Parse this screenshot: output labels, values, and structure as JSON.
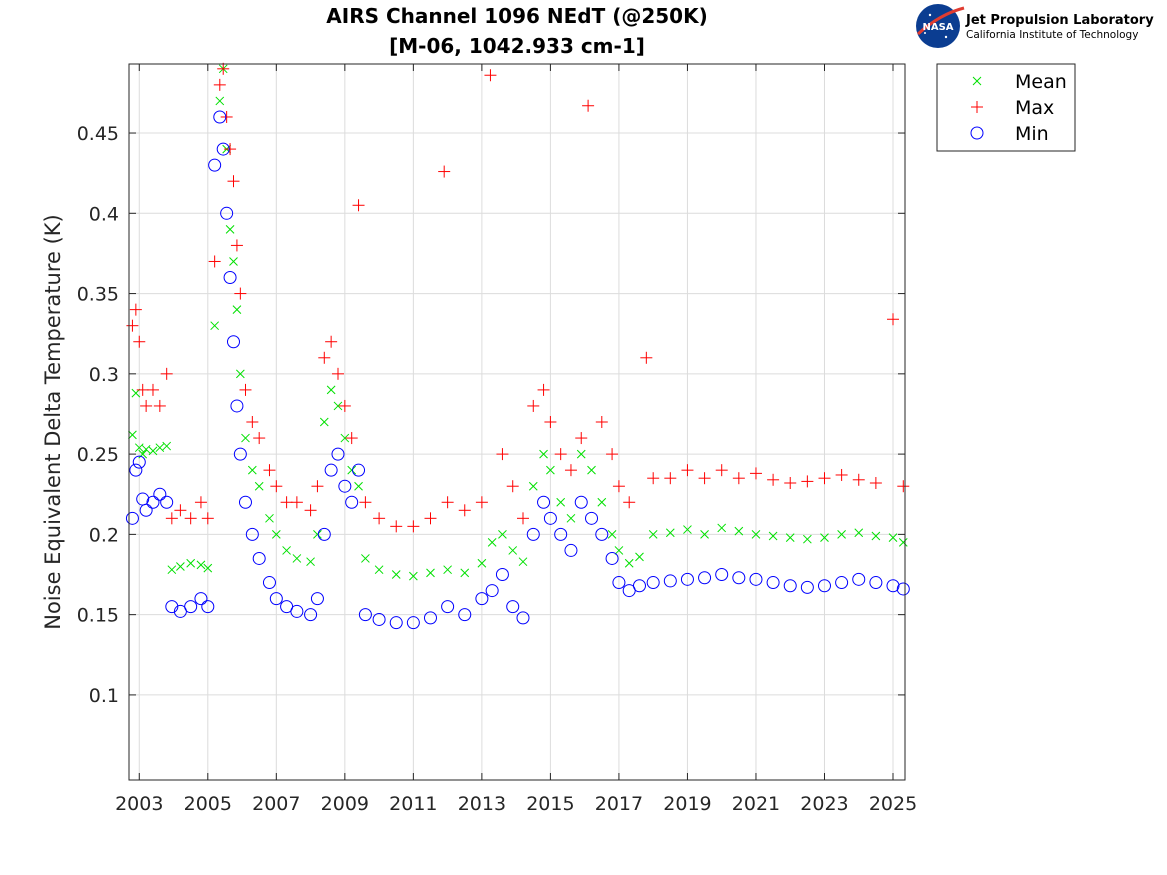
{
  "logo": {
    "nasa_label": "NASA",
    "lab_name": "Jet Propulsion Laboratory",
    "institute": "California Institute of Technology"
  },
  "colors": {
    "mean": "#00e000",
    "max": "#ff0000",
    "min": "#0000ff"
  },
  "chart_data": {
    "type": "scatter",
    "title": "AIRS Channel 1096 NEdT (@250K)",
    "subtitle": "[M-06, 1042.933 cm-1]",
    "xlabel": "",
    "ylabel": "Noise Equivalent Delta Temperature (K)",
    "xlim": [
      2002.7,
      2025.35
    ],
    "ylim": [
      0.047,
      0.493
    ],
    "xticks": [
      2003,
      2005,
      2007,
      2009,
      2011,
      2013,
      2015,
      2017,
      2019,
      2021,
      2023,
      2025
    ],
    "xtick_labels": [
      "2003",
      "2005",
      "2007",
      "2009",
      "2011",
      "2013",
      "2015",
      "2017",
      "2019",
      "2021",
      "2023",
      "2025"
    ],
    "yticks": [
      0.1,
      0.15,
      0.2,
      0.25,
      0.3,
      0.35,
      0.4,
      0.45
    ],
    "ytick_labels": [
      "0.1",
      "0.15",
      "0.2",
      "0.25",
      "0.3",
      "0.35",
      "0.4",
      "0.45"
    ],
    "grid": true,
    "legend_position": "outside-top-right",
    "series": [
      {
        "name": "Mean",
        "marker": "x",
        "color": "#00e000",
        "x": [
          2002.8,
          2002.9,
          2003.0,
          2003.1,
          2003.2,
          2003.4,
          2003.6,
          2003.8,
          2003.95,
          2004.2,
          2004.5,
          2004.8,
          2005.0,
          2005.2,
          2005.35,
          2005.45,
          2005.55,
          2005.65,
          2005.75,
          2005.85,
          2005.95,
          2006.1,
          2006.3,
          2006.5,
          2006.8,
          2007.0,
          2007.3,
          2007.6,
          2008.0,
          2008.2,
          2008.4,
          2008.6,
          2008.8,
          2009.0,
          2009.2,
          2009.4,
          2009.6,
          2010.0,
          2010.5,
          2011.0,
          2011.5,
          2012.0,
          2012.5,
          2013.0,
          2013.3,
          2013.6,
          2013.9,
          2014.2,
          2014.5,
          2014.8,
          2015.0,
          2015.3,
          2015.6,
          2015.9,
          2016.2,
          2016.5,
          2016.8,
          2017.0,
          2017.3,
          2017.6,
          2018.0,
          2018.5,
          2019.0,
          2019.5,
          2020.0,
          2020.5,
          2021.0,
          2021.5,
          2022.0,
          2022.5,
          2023.0,
          2023.5,
          2024.0,
          2024.5,
          2025.0,
          2025.3
        ],
        "y": [
          0.262,
          0.288,
          0.254,
          0.25,
          0.253,
          0.252,
          0.254,
          0.255,
          0.178,
          0.18,
          0.182,
          0.181,
          0.179,
          0.33,
          0.47,
          0.49,
          0.44,
          0.39,
          0.37,
          0.34,
          0.3,
          0.26,
          0.24,
          0.23,
          0.21,
          0.2,
          0.19,
          0.185,
          0.183,
          0.2,
          0.27,
          0.29,
          0.28,
          0.26,
          0.24,
          0.23,
          0.185,
          0.178,
          0.175,
          0.174,
          0.176,
          0.178,
          0.176,
          0.182,
          0.195,
          0.2,
          0.19,
          0.183,
          0.23,
          0.25,
          0.24,
          0.22,
          0.21,
          0.25,
          0.24,
          0.22,
          0.2,
          0.19,
          0.182,
          0.186,
          0.2,
          0.201,
          0.203,
          0.2,
          0.204,
          0.202,
          0.2,
          0.199,
          0.198,
          0.197,
          0.198,
          0.2,
          0.201,
          0.199,
          0.198,
          0.195
        ]
      },
      {
        "name": "Max",
        "marker": "+",
        "color": "#ff0000",
        "x": [
          2002.8,
          2002.9,
          2003.0,
          2003.1,
          2003.2,
          2003.4,
          2003.6,
          2003.8,
          2003.95,
          2004.2,
          2004.5,
          2004.8,
          2005.0,
          2005.2,
          2005.35,
          2005.45,
          2005.55,
          2005.65,
          2005.75,
          2005.85,
          2005.95,
          2006.1,
          2006.3,
          2006.5,
          2006.8,
          2007.0,
          2007.3,
          2007.6,
          2008.0,
          2008.2,
          2008.4,
          2008.6,
          2008.8,
          2009.0,
          2009.2,
          2009.4,
          2009.6,
          2010.0,
          2010.5,
          2011.0,
          2011.5,
          2011.9,
          2012.0,
          2012.5,
          2013.0,
          2013.25,
          2013.6,
          2013.9,
          2014.2,
          2014.5,
          2014.8,
          2015.0,
          2015.3,
          2015.6,
          2015.9,
          2016.1,
          2016.5,
          2016.8,
          2017.0,
          2017.3,
          2017.8,
          2018.0,
          2018.5,
          2019.0,
          2019.5,
          2020.0,
          2020.5,
          2021.0,
          2021.5,
          2022.0,
          2022.5,
          2023.0,
          2023.5,
          2024.0,
          2024.5,
          2025.0,
          2025.3
        ],
        "y": [
          0.33,
          0.34,
          0.32,
          0.29,
          0.28,
          0.29,
          0.28,
          0.3,
          0.21,
          0.215,
          0.21,
          0.22,
          0.21,
          0.37,
          0.48,
          0.49,
          0.46,
          0.44,
          0.42,
          0.38,
          0.35,
          0.29,
          0.27,
          0.26,
          0.24,
          0.23,
          0.22,
          0.22,
          0.215,
          0.23,
          0.31,
          0.32,
          0.3,
          0.28,
          0.26,
          0.405,
          0.22,
          0.21,
          0.205,
          0.205,
          0.21,
          0.426,
          0.22,
          0.215,
          0.22,
          0.486,
          0.25,
          0.23,
          0.21,
          0.28,
          0.29,
          0.27,
          0.25,
          0.24,
          0.26,
          0.467,
          0.27,
          0.25,
          0.23,
          0.22,
          0.31,
          0.235,
          0.235,
          0.24,
          0.235,
          0.24,
          0.235,
          0.238,
          0.234,
          0.232,
          0.233,
          0.235,
          0.237,
          0.234,
          0.232,
          0.334,
          0.23
        ]
      },
      {
        "name": "Min",
        "marker": "o",
        "color": "#0000ff",
        "x": [
          2002.8,
          2002.9,
          2003.0,
          2003.1,
          2003.2,
          2003.4,
          2003.6,
          2003.8,
          2003.95,
          2004.2,
          2004.5,
          2004.8,
          2005.0,
          2005.2,
          2005.35,
          2005.45,
          2005.55,
          2005.65,
          2005.75,
          2005.85,
          2005.95,
          2006.1,
          2006.3,
          2006.5,
          2006.8,
          2007.0,
          2007.3,
          2007.6,
          2008.0,
          2008.2,
          2008.4,
          2008.6,
          2008.8,
          2009.0,
          2009.2,
          2009.4,
          2009.6,
          2010.0,
          2010.5,
          2011.0,
          2011.5,
          2012.0,
          2012.5,
          2013.0,
          2013.3,
          2013.6,
          2013.9,
          2014.2,
          2014.5,
          2014.8,
          2015.0,
          2015.3,
          2015.6,
          2015.9,
          2016.2,
          2016.5,
          2016.8,
          2017.0,
          2017.3,
          2017.6,
          2018.0,
          2018.5,
          2019.0,
          2019.5,
          2020.0,
          2020.5,
          2021.0,
          2021.5,
          2022.0,
          2022.5,
          2023.0,
          2023.5,
          2024.0,
          2024.5,
          2025.0,
          2025.3
        ],
        "y": [
          0.21,
          0.24,
          0.245,
          0.222,
          0.215,
          0.22,
          0.225,
          0.22,
          0.155,
          0.152,
          0.155,
          0.16,
          0.155,
          0.43,
          0.46,
          0.44,
          0.4,
          0.36,
          0.32,
          0.28,
          0.25,
          0.22,
          0.2,
          0.185,
          0.17,
          0.16,
          0.155,
          0.152,
          0.15,
          0.16,
          0.2,
          0.24,
          0.25,
          0.23,
          0.22,
          0.24,
          0.15,
          0.147,
          0.145,
          0.145,
          0.148,
          0.155,
          0.15,
          0.16,
          0.165,
          0.175,
          0.155,
          0.148,
          0.2,
          0.22,
          0.21,
          0.2,
          0.19,
          0.22,
          0.21,
          0.2,
          0.185,
          0.17,
          0.165,
          0.168,
          0.17,
          0.171,
          0.172,
          0.173,
          0.175,
          0.173,
          0.172,
          0.17,
          0.168,
          0.167,
          0.168,
          0.17,
          0.172,
          0.17,
          0.168,
          0.166
        ]
      }
    ]
  }
}
